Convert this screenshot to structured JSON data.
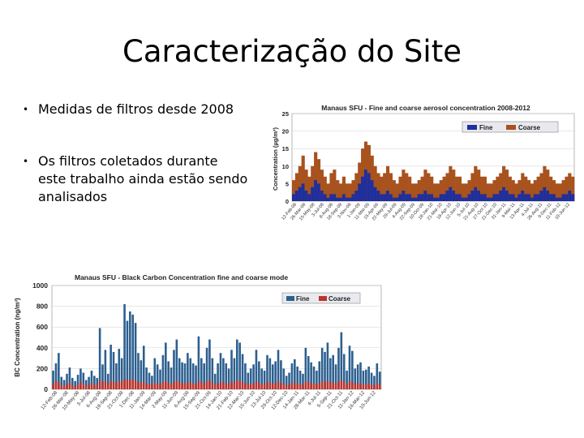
{
  "slide": {
    "title": "Caracterização do Site",
    "bullets": [
      "Medidas de filtros desde 2008",
      "Os filtros coletados durante este trabalho ainda estão sendo analisados"
    ],
    "bullet_symbol": "•"
  },
  "colors": {
    "fine1": "#1f2f9c",
    "coarse1": "#a8521e",
    "fine2": "#2c5f8f",
    "coarse2": "#c0322a"
  },
  "chart_data": [
    {
      "type": "area",
      "title": "Manaus SFU - Fine and coarse aerosol concentration 2008-2012",
      "ylabel": "Concentration (µg/m³)",
      "ylim": [
        0,
        25
      ],
      "yticks": [
        0,
        5,
        10,
        15,
        20,
        25
      ],
      "x_ticks": [
        "12-Feb-08",
        "26-Mar-08",
        "15-May-08",
        "3-Jul-08",
        "8-Aug-08",
        "18-Sep-08",
        "3-Nov-08",
        "1-Jan-09",
        "11-Mar-09",
        "15-Apr-09",
        "22-May-09",
        "29-Jul-09",
        "4-Aug-09",
        "22-Sep-09",
        "10-Oct-09",
        "18-Jan-10",
        "21-Mar-10",
        "18-Apr-10",
        "12-Jun-10",
        "5-Jul-10",
        "21-Aug-10",
        "27-Oct-10",
        "21-Dec-10",
        "31-Jan-11",
        "9-Mar-11",
        "13-Apr-11",
        "4-Jul-11",
        "26-Aug-11",
        "9-Dec-11",
        "11-Feb-12",
        "10-Jun-12"
      ],
      "legend": {
        "position": "top-right"
      },
      "series": [
        {
          "name": "Fine",
          "values": [
            2,
            3,
            4,
            5,
            3,
            2,
            4,
            6,
            5,
            3,
            2,
            1,
            2,
            2,
            1,
            1,
            2,
            1,
            1,
            2,
            3,
            5,
            7,
            9,
            8,
            6,
            4,
            3,
            2,
            2,
            3,
            2,
            1,
            1,
            2,
            3,
            2,
            2,
            1,
            1,
            2,
            2,
            3,
            2,
            2,
            1,
            1,
            2,
            2,
            3,
            4,
            3,
            2,
            2,
            1,
            1,
            2,
            3,
            4,
            3,
            2,
            2,
            1,
            1,
            2,
            2,
            3,
            4,
            3,
            2,
            2,
            1,
            2,
            3,
            2,
            2,
            1,
            2,
            2,
            3,
            4,
            3,
            2,
            2,
            1,
            1,
            2,
            2,
            3,
            2
          ]
        },
        {
          "name": "Coarse",
          "values": [
            6,
            8,
            10,
            13,
            9,
            7,
            10,
            14,
            12,
            9,
            7,
            5,
            8,
            9,
            6,
            5,
            7,
            5,
            5,
            6,
            8,
            11,
            15,
            17,
            16,
            13,
            10,
            8,
            7,
            8,
            10,
            8,
            6,
            5,
            7,
            9,
            8,
            7,
            5,
            5,
            6,
            7,
            9,
            8,
            7,
            5,
            5,
            6,
            7,
            8,
            10,
            9,
            7,
            7,
            5,
            5,
            6,
            8,
            10,
            9,
            7,
            7,
            5,
            5,
            6,
            7,
            8,
            10,
            9,
            7,
            6,
            5,
            6,
            8,
            7,
            6,
            5,
            6,
            7,
            8,
            10,
            9,
            7,
            6,
            5,
            5,
            6,
            7,
            8,
            7
          ]
        }
      ]
    },
    {
      "type": "bar",
      "title": "Manaus SFU -  Black Carbon Concentration fine and coarse mode",
      "ylabel": "BC Concentration (ng/m³)",
      "ylim": [
        0,
        1000
      ],
      "yticks": [
        0,
        200,
        400,
        600,
        800,
        1000
      ],
      "x_ticks": [
        "12-Feb-08",
        "26-Mar-08",
        "10-May-08",
        "3-Jul-08",
        "6-Aug-08",
        "18-Sep-08",
        "21-Oct-08",
        "1-Dec-08",
        "11-Jan-09",
        "14-Mar-09",
        "2-May-09",
        "11-Jun-09",
        "6-Aug-09",
        "15-Sep-09",
        "21-Oct-09",
        "14-Jan-10",
        "21-Feb-10",
        "12-Mar-10",
        "15-Jun-10",
        "13-Jul-10",
        "29-Oct-10",
        "12-Dec-10",
        "14-Jan-11",
        "28-Mar-11",
        "4-Jul-11",
        "5-Sep-11",
        "21-Oct-11",
        "11-Jan-12",
        "16-Mar-12",
        "10-Jun-12"
      ],
      "legend": {
        "position": "top-right"
      },
      "series": [
        {
          "name": "Fine",
          "values": [
            180,
            250,
            350,
            120,
            90,
            150,
            210,
            110,
            80,
            140,
            200,
            160,
            90,
            120,
            180,
            130,
            110,
            590,
            240,
            380,
            150,
            430,
            360,
            250,
            390,
            300,
            820,
            660,
            750,
            720,
            640,
            350,
            280,
            420,
            210,
            160,
            130,
            300,
            240,
            190,
            330,
            450,
            270,
            210,
            380,
            480,
            300,
            260,
            250,
            350,
            300,
            250,
            230,
            510,
            300,
            250,
            400,
            480,
            300,
            150,
            250,
            350,
            300,
            250,
            200,
            380,
            300,
            480,
            450,
            340,
            250,
            160,
            200,
            240,
            380,
            270,
            200,
            180,
            330,
            300,
            240,
            270,
            380,
            280,
            200,
            130,
            160,
            250,
            290,
            220,
            180,
            150,
            400,
            320,
            260,
            220,
            180,
            270,
            400,
            360,
            450,
            300,
            330,
            240,
            400,
            550,
            340,
            180,
            420,
            370,
            200,
            240,
            260,
            180,
            190,
            220,
            160,
            130,
            250,
            170
          ]
        },
        {
          "name": "Coarse",
          "values": [
            50,
            80,
            70,
            40,
            30,
            55,
            60,
            35,
            30,
            50,
            70,
            50,
            35,
            45,
            60,
            45,
            40,
            90,
            70,
            80,
            50,
            80,
            75,
            60,
            80,
            70,
            100,
            90,
            95,
            90,
            85,
            70,
            60,
            75,
            55,
            50,
            45,
            65,
            55,
            50,
            70,
            80,
            60,
            55,
            70,
            85,
            65,
            60,
            55,
            70,
            65,
            55,
            50,
            80,
            65,
            60,
            75,
            85,
            65,
            45,
            55,
            70,
            65,
            60,
            50,
            75,
            65,
            85,
            80,
            70,
            60,
            45,
            50,
            55,
            75,
            60,
            50,
            45,
            70,
            65,
            55,
            60,
            75,
            60,
            50,
            40,
            45,
            60,
            65,
            55,
            50,
            45,
            75,
            70,
            60,
            55,
            50,
            60,
            75,
            70,
            80,
            65,
            70,
            55,
            75,
            90,
            70,
            45,
            80,
            70,
            50,
            55,
            60,
            45,
            50,
            55,
            45,
            40,
            60,
            45
          ]
        }
      ]
    }
  ]
}
